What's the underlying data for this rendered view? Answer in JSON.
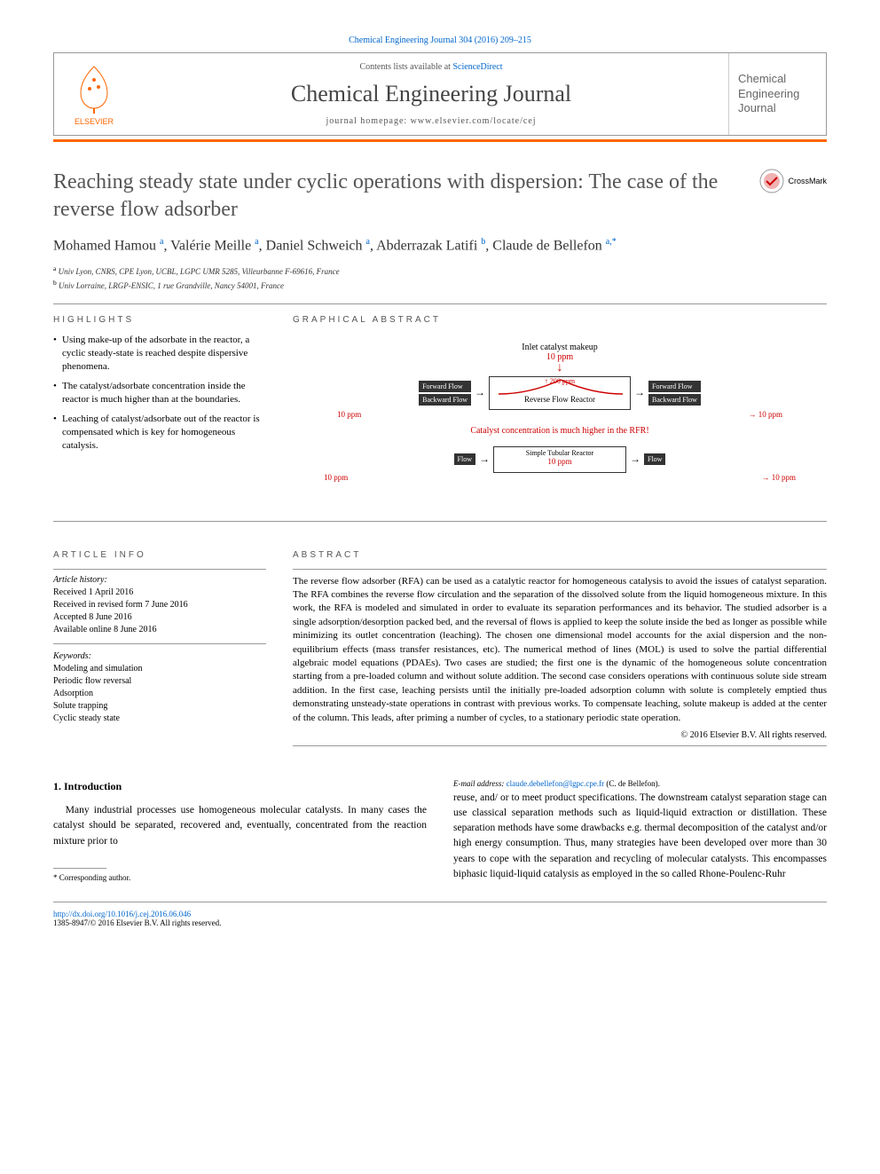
{
  "citation": "Chemical Engineering Journal 304 (2016) 209–215",
  "masthead": {
    "contents_prefix": "Contents lists available at ",
    "contents_link": "ScienceDirect",
    "journal_name": "Chemical Engineering Journal",
    "homepage_prefix": "journal homepage: ",
    "homepage_url": "www.elsevier.com/locate/cej",
    "publisher": "ELSEVIER",
    "cover_line1": "Chemical",
    "cover_line2": "Engineering",
    "cover_line3": "Journal"
  },
  "crossmark": "CrossMark",
  "title": "Reaching steady state under cyclic operations with dispersion: The case of the reverse flow adsorber",
  "authors_html": "Mohamed Hamou <sup>a</sup>, Valérie Meille <sup>a</sup>, Daniel Schweich <sup>a</sup>, Abderrazak Latifi <sup>b</sup>, Claude de Bellefon <sup>a,*</sup>",
  "affiliations": [
    {
      "sup": "a",
      "text": "Univ Lyon, CNRS, CPE Lyon, UCBL, LGPC UMR 5285, Villeurbanne F-69616, France"
    },
    {
      "sup": "b",
      "text": "Univ Lorraine, LRGP-ENSIC, 1 rue Grandville, Nancy 54001, France"
    }
  ],
  "highlights": {
    "heading": "HIGHLIGHTS",
    "items": [
      "Using make-up of the adsorbate in the reactor, a cyclic steady-state is reached despite dispersive phenomena.",
      "The catalyst/adsorbate concentration inside the reactor is much higher than at the boundaries.",
      "Leaching of catalyst/adsorbate out of the reactor is compensated which is key for homogeneous catalysis."
    ]
  },
  "graphical_abstract": {
    "heading": "GRAPHICAL ABSTRACT",
    "inlet_label": "Inlet catalyst makeup",
    "inlet_ppm": "10 ppm",
    "forward_flow": "Forward Flow",
    "backward_flow": "Backward Flow",
    "peak_ppm": "200 ppm",
    "side_ppm_left": "10 ppm",
    "side_ppm_right": "10 ppm",
    "rfr_label": "Reverse Flow Reactor",
    "caption": "Catalyst concentration is much higher in the RFR!",
    "simple_label": "Simple Tubular Reactor",
    "simple_ppm": "10 ppm",
    "flow_label": "Flow",
    "colors": {
      "red": "#cc0000",
      "box_dark": "#333333",
      "border": "#333333"
    }
  },
  "article_info": {
    "heading": "ARTICLE INFO",
    "history_head": "Article history:",
    "history": [
      "Received 1 April 2016",
      "Received in revised form 7 June 2016",
      "Accepted 8 June 2016",
      "Available online 8 June 2016"
    ],
    "keywords_head": "Keywords:",
    "keywords": [
      "Modeling and simulation",
      "Periodic flow reversal",
      "Adsorption",
      "Solute trapping",
      "Cyclic steady state"
    ]
  },
  "abstract": {
    "heading": "ABSTRACT",
    "text": "The reverse flow adsorber (RFA) can be used as a catalytic reactor for homogeneous catalysis to avoid the issues of catalyst separation. The RFA combines the reverse flow circulation and the separation of the dissolved solute from the liquid homogeneous mixture. In this work, the RFA is modeled and simulated in order to evaluate its separation performances and its behavior. The studied adsorber is a single adsorption/desorption packed bed, and the reversal of flows is applied to keep the solute inside the bed as longer as possible while minimizing its outlet concentration (leaching). The chosen one dimensional model accounts for the axial dispersion and the non-equilibrium effects (mass transfer resistances, etc). The numerical method of lines (MOL) is used to solve the partial differential algebraic model equations (PDAEs). Two cases are studied; the first one is the dynamic of the homogeneous solute concentration starting from a pre-loaded column and without solute addition. The second case considers operations with continuous solute side stream addition. In the first case, leaching persists until the initially pre-loaded adsorption column with solute is completely emptied thus demonstrating unsteady-state operations in contrast with previous works. To compensate leaching, solute makeup is added at the center of the column. This leads, after priming a number of cycles, to a stationary periodic state operation.",
    "copyright": "© 2016 Elsevier B.V. All rights reserved."
  },
  "introduction": {
    "heading": "1. Introduction",
    "para1": "Many industrial processes use homogeneous molecular catalysts. In many cases the catalyst should be separated, recovered and, eventually, concentrated from the reaction mixture prior to",
    "para2": "reuse, and/ or to meet product specifications. The downstream catalyst separation stage can use classical separation methods such as liquid-liquid extraction or distillation. These separation methods have some drawbacks e.g. thermal decomposition of the catalyst and/or high energy consumption. Thus, many strategies have been developed over more than 30 years to cope with the separation and recycling of molecular catalysts. This encompasses biphasic liquid-liquid catalysis as employed in the so called Rhone-Poulenc-Ruhr"
  },
  "corresponding": {
    "star": "* Corresponding author.",
    "email_label": "E-mail address: ",
    "email": "claude.debellefon@lgpc.cpe.fr",
    "email_suffix": " (C. de Bellefon)."
  },
  "footer": {
    "doi": "http://dx.doi.org/10.1016/j.cej.2016.06.046",
    "issn_line": "1385-8947/© 2016 Elsevier B.V. All rights reserved."
  },
  "colors": {
    "link": "#0066cc",
    "orange": "#ff6600",
    "text": "#000000",
    "heading_gray": "#555555"
  }
}
